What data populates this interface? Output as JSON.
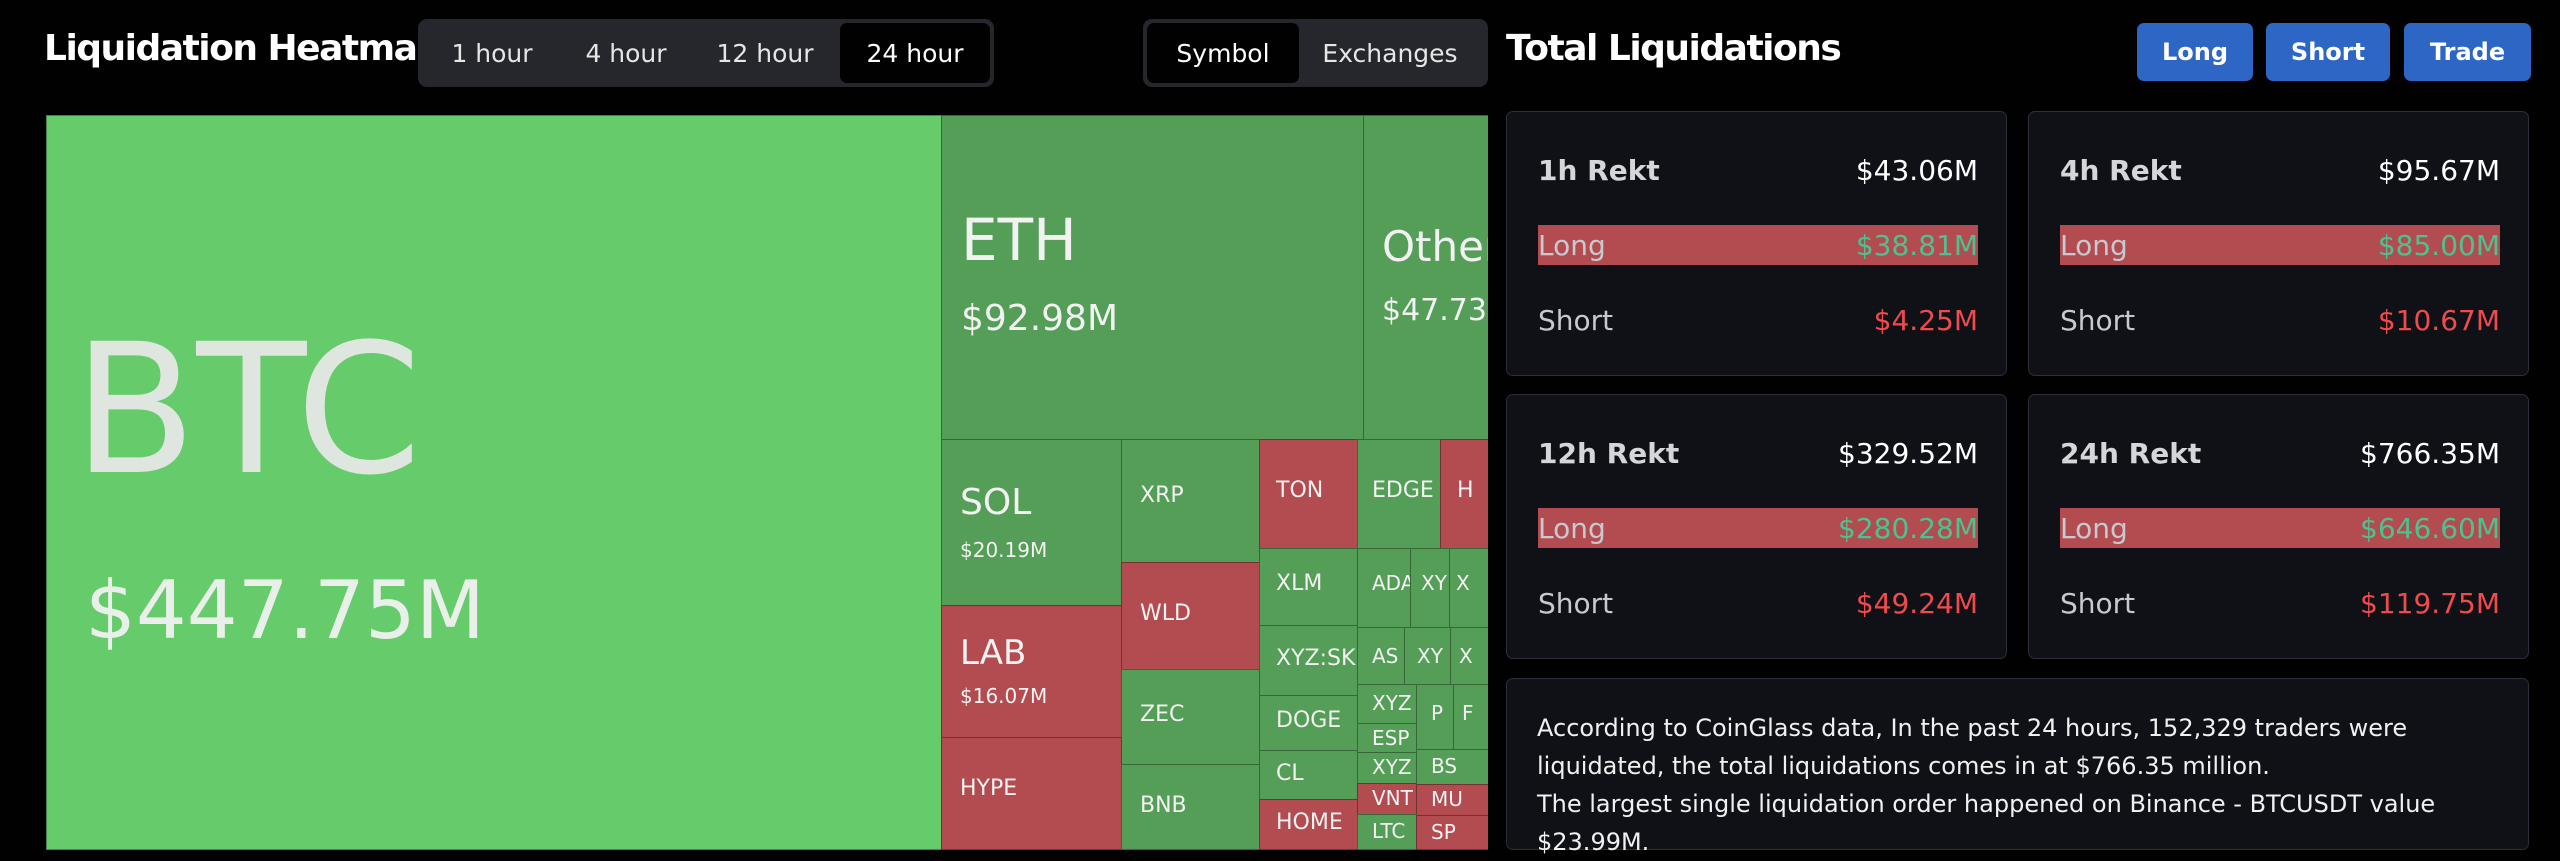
{
  "header": {
    "title": "Liquidation Heatmap",
    "time_tabs": [
      {
        "label": "1 hour",
        "active": false
      },
      {
        "label": "4 hour",
        "active": false
      },
      {
        "label": "12 hour",
        "active": false
      },
      {
        "label": "24 hour",
        "active": true
      }
    ],
    "view_tabs": [
      {
        "label": "Symbol",
        "active": true
      },
      {
        "label": "Exchanges",
        "active": false
      }
    ]
  },
  "heatmap": {
    "colors": {
      "bright_green": "#66cb6a",
      "green": "#559e57",
      "dark_green": "#4c9a4f",
      "red": "#b24c50"
    },
    "tiles": [
      {
        "symbol": "BTC",
        "value": "$447.75M",
        "color": "bright_green"
      },
      {
        "symbol": "ETH",
        "value": "$92.98M",
        "color": "green"
      },
      {
        "symbol": "Other",
        "value": "$47.73",
        "color": "green"
      },
      {
        "symbol": "SOL",
        "value": "$20.19M",
        "color": "green"
      },
      {
        "symbol": "XRP",
        "value": "",
        "color": "green"
      },
      {
        "symbol": "TON",
        "value": "",
        "color": "red"
      },
      {
        "symbol": "EDGE",
        "value": "",
        "color": "green"
      },
      {
        "symbol": "H",
        "value": "",
        "color": "red"
      },
      {
        "symbol": "WLD",
        "value": "",
        "color": "red"
      },
      {
        "symbol": "XLM",
        "value": "",
        "color": "green"
      },
      {
        "symbol": "ADA",
        "value": "",
        "color": "green"
      },
      {
        "symbol": "XY",
        "value": "",
        "color": "green"
      },
      {
        "symbol": "X",
        "value": "",
        "color": "green"
      },
      {
        "symbol": "LAB",
        "value": "$16.07M",
        "color": "red"
      },
      {
        "symbol": "XYZ:SKH",
        "value": "",
        "color": "green"
      },
      {
        "symbol": "AS",
        "value": "",
        "color": "green"
      },
      {
        "symbol": "XY",
        "value": "",
        "color": "green"
      },
      {
        "symbol": "X",
        "value": "",
        "color": "green"
      },
      {
        "symbol": "ZEC",
        "value": "",
        "color": "green"
      },
      {
        "symbol": "DOGE",
        "value": "",
        "color": "green"
      },
      {
        "symbol": "XYZ",
        "value": "",
        "color": "green"
      },
      {
        "symbol": "P",
        "value": "",
        "color": "green"
      },
      {
        "symbol": "F",
        "value": "",
        "color": "green"
      },
      {
        "symbol": "ESP",
        "value": "",
        "color": "green"
      },
      {
        "symbol": "HYPE",
        "value": "",
        "color": "red"
      },
      {
        "symbol": "CL",
        "value": "",
        "color": "green"
      },
      {
        "symbol": "XYZ",
        "value": "",
        "color": "green"
      },
      {
        "symbol": "BS",
        "value": "",
        "color": "green"
      },
      {
        "symbol": "BNB",
        "value": "",
        "color": "green"
      },
      {
        "symbol": "VNT",
        "value": "",
        "color": "red"
      },
      {
        "symbol": "MU",
        "value": "",
        "color": "red"
      },
      {
        "symbol": "HOME",
        "value": "",
        "color": "red"
      },
      {
        "symbol": "LTC",
        "value": "",
        "color": "green"
      },
      {
        "symbol": "SP",
        "value": "",
        "color": "red"
      }
    ]
  },
  "totals": {
    "title": "Total Liquidations",
    "buttons": {
      "long": "Long",
      "short": "Short",
      "trade": "Trade"
    },
    "cards": [
      {
        "title": "1h Rekt",
        "total": "$43.06M",
        "long_label": "Long",
        "long": "$38.81M",
        "short_label": "Short",
        "short": "$4.25M"
      },
      {
        "title": "4h Rekt",
        "total": "$95.67M",
        "long_label": "Long",
        "long": "$85.00M",
        "short_label": "Short",
        "short": "$10.67M"
      },
      {
        "title": "12h Rekt",
        "total": "$329.52M",
        "long_label": "Long",
        "long": "$280.28M",
        "short_label": "Short",
        "short": "$49.24M"
      },
      {
        "title": "24h Rekt",
        "total": "$766.35M",
        "long_label": "Long",
        "long": "$646.60M",
        "short_label": "Short",
        "short": "$119.75M"
      }
    ],
    "colors": {
      "positive": "#4ec28e",
      "negative": "#ef4b4d",
      "button": "#2d66c4"
    },
    "summary_line1": "According to CoinGlass data, In the past 24 hours, 152,329 traders were liquidated, the total liquidations comes in at $766.35 million.",
    "summary_line2": "The largest single liquidation order happened on Binance - BTCUSDT value $23.99M."
  }
}
